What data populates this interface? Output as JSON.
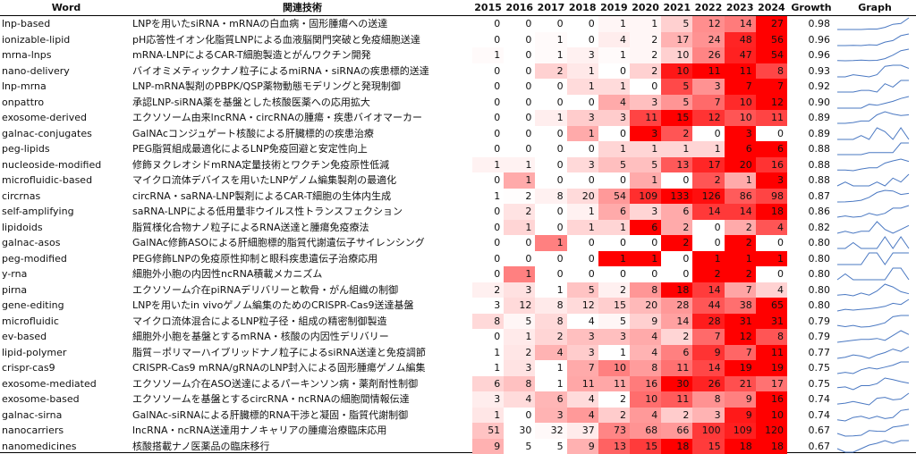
{
  "headers": {
    "word": "Word",
    "tech": "関連技術",
    "growth": "Growth",
    "graph": "Graph"
  },
  "years": [
    2015,
    2016,
    2017,
    2018,
    2019,
    2020,
    2021,
    2022,
    2023,
    2024
  ],
  "rows": [
    {
      "word": "lnp-based",
      "tech": "LNPを用いたsiRNA・mRNAの白血病・固形腫瘍への送達",
      "values": [
        0,
        0,
        0,
        0,
        1,
        1,
        5,
        12,
        14,
        27
      ],
      "growth": "0.98"
    },
    {
      "word": "ionizable-lipid",
      "tech": "pH応答性イオン化脂質LNPによる血液脳関門突破と免疫細胞送達",
      "values": [
        0,
        0,
        1,
        0,
        4,
        2,
        17,
        24,
        48,
        56
      ],
      "growth": "0.96"
    },
    {
      "word": "mrna-lnps",
      "tech": "mRNA-LNPによるCAR-T細胞製造とがんワクチン開発",
      "values": [
        1,
        0,
        1,
        3,
        1,
        2,
        10,
        26,
        47,
        54
      ],
      "growth": "0.96"
    },
    {
      "word": "nano-delivery",
      "tech": "バイオミメティックナノ粒子によるmiRNA・siRNAの疾患標的送達",
      "values": [
        0,
        0,
        2,
        1,
        0,
        2,
        10,
        11,
        11,
        8
      ],
      "growth": "0.93"
    },
    {
      "word": "lnp-mrna",
      "tech": "LNP-mRNA製剤のPBPK/QSP薬物動態モデリングと発現制御",
      "values": [
        0,
        0,
        0,
        1,
        1,
        0,
        5,
        3,
        7,
        7
      ],
      "growth": "0.92"
    },
    {
      "word": "onpattro",
      "tech": "承認LNP-siRNA薬を基盤とした核酸医薬への応用拡大",
      "values": [
        0,
        0,
        0,
        0,
        4,
        3,
        5,
        7,
        10,
        12
      ],
      "growth": "0.90"
    },
    {
      "word": "exosome-derived",
      "tech": "エクソソーム由来lncRNA・circRNAの腫瘍・疾患バイオマーカー",
      "values": [
        0,
        0,
        1,
        3,
        3,
        11,
        15,
        12,
        10,
        11
      ],
      "growth": "0.89"
    },
    {
      "word": "galnac-conjugates",
      "tech": "GalNAcコンジュゲート核酸による肝臓標的の疾患治療",
      "values": [
        0,
        0,
        0,
        1,
        0,
        3,
        2,
        0,
        3,
        0
      ],
      "growth": "0.89"
    },
    {
      "word": "peg-lipids",
      "tech": "PEG脂質組成最適化によるLNP免疫回避と安定性向上",
      "values": [
        0,
        0,
        0,
        0,
        1,
        1,
        1,
        1,
        6,
        6
      ],
      "growth": "0.88"
    },
    {
      "word": "nucleoside-modified",
      "tech": "修飾ヌクレオシドmRNA定量技術とワクチン免疫原性低減",
      "values": [
        1,
        1,
        0,
        3,
        5,
        5,
        13,
        17,
        20,
        16
      ],
      "growth": "0.88"
    },
    {
      "word": "microfluidic-based",
      "tech": "マイクロ流体デバイスを用いたLNPゲノム編集製剤の最適化",
      "values": [
        0,
        1,
        0,
        0,
        0,
        1,
        0,
        2,
        1,
        3
      ],
      "growth": "0.88"
    },
    {
      "word": "circrnas",
      "tech": "circRNA・saRNA-LNP製剤によるCAR-T細胞の生体内生成",
      "values": [
        1,
        2,
        8,
        20,
        54,
        109,
        133,
        126,
        86,
        98
      ],
      "growth": "0.87"
    },
    {
      "word": "self-amplifying",
      "tech": "saRNA-LNPによる低用量非ウイルス性トランスフェクション",
      "values": [
        0,
        2,
        0,
        1,
        6,
        3,
        6,
        14,
        14,
        18
      ],
      "growth": "0.86"
    },
    {
      "word": "lipidoids",
      "tech": "脂質様化合物ナノ粒子によるRNA送達と腫瘍免疫療法",
      "values": [
        0,
        1,
        0,
        1,
        1,
        6,
        2,
        0,
        2,
        4
      ],
      "growth": "0.82"
    },
    {
      "word": "galnac-asos",
      "tech": "GalNAc修飾ASOによる肝細胞標的脂質代謝遺伝子サイレンシング",
      "values": [
        0,
        0,
        1,
        0,
        0,
        0,
        2,
        0,
        2,
        0
      ],
      "growth": "0.80"
    },
    {
      "word": "peg-modified",
      "tech": "PEG修飾LNPの免疫原性抑制と眼科疾患遺伝子治療応用",
      "values": [
        0,
        0,
        0,
        0,
        1,
        1,
        0,
        1,
        1,
        1
      ],
      "growth": "0.80"
    },
    {
      "word": "y-rna",
      "tech": "細胞外小胞の内因性ncRNA積載メカニズム",
      "values": [
        0,
        1,
        0,
        0,
        0,
        0,
        0,
        2,
        2,
        0
      ],
      "growth": "0.80"
    },
    {
      "word": "pirna",
      "tech": "エクソソーム介在piRNAデリバリーと軟骨・がん組織の制御",
      "values": [
        2,
        3,
        1,
        5,
        2,
        8,
        18,
        14,
        7,
        4
      ],
      "growth": "0.80"
    },
    {
      "word": "gene-editing",
      "tech": "LNPを用いたin vivoゲノム編集のためのCRISPR-Cas9送達基盤",
      "values": [
        3,
        12,
        8,
        12,
        15,
        20,
        28,
        44,
        38,
        65
      ],
      "growth": "0.80"
    },
    {
      "word": "microfluidic",
      "tech": "マイクロ流体混合によるLNP粒子径・組成の精密制御製造",
      "values": [
        8,
        5,
        8,
        4,
        5,
        9,
        14,
        28,
        31,
        31
      ],
      "growth": "0.79"
    },
    {
      "word": "ev-based",
      "tech": "細胞外小胞を基盤とするmRNA・核酸の内因性デリバリー",
      "values": [
        0,
        1,
        2,
        3,
        3,
        4,
        2,
        7,
        12,
        8
      ],
      "growth": "0.79"
    },
    {
      "word": "lipid-polymer",
      "tech": "脂質－ポリマーハイブリッドナノ粒子によるsiRNA送達と免疫調節",
      "values": [
        1,
        2,
        4,
        3,
        1,
        4,
        6,
        9,
        7,
        11
      ],
      "growth": "0.77"
    },
    {
      "word": "crispr-cas9",
      "tech": "CRISPR-Cas9 mRNA/gRNAのLNP封入による固形腫瘍ゲノム編集",
      "values": [
        1,
        3,
        1,
        7,
        10,
        8,
        11,
        14,
        19,
        19
      ],
      "growth": "0.75"
    },
    {
      "word": "exosome-mediated",
      "tech": "エクソソーム介在ASO送達によるパーキンソン病・薬剤耐性制御",
      "values": [
        6,
        8,
        1,
        11,
        11,
        16,
        30,
        26,
        21,
        17
      ],
      "growth": "0.75"
    },
    {
      "word": "exosome-based",
      "tech": "エクソソームを基盤とするcircRNA・ncRNAの細胞間情報伝達",
      "values": [
        3,
        4,
        6,
        4,
        2,
        10,
        11,
        8,
        9,
        16
      ],
      "growth": "0.74"
    },
    {
      "word": "galnac-sirna",
      "tech": "GalNAc-siRNAによる肝臓標的RNA干渉と凝固・脂質代謝制御",
      "values": [
        1,
        0,
        3,
        4,
        2,
        4,
        2,
        3,
        9,
        10
      ],
      "growth": "0.74"
    },
    {
      "word": "nanocarriers",
      "tech": "lncRNA・ncRNA送達用ナノキャリアの腫瘍治療臨床応用",
      "values": [
        51,
        30,
        32,
        37,
        73,
        68,
        66,
        100,
        109,
        120
      ],
      "growth": "0.67"
    },
    {
      "word": "nanomedicines",
      "tech": "核酸搭載ナノ医薬品の臨床移行",
      "values": [
        9,
        5,
        5,
        9,
        13,
        15,
        18,
        15,
        18,
        18
      ],
      "growth": "0.67"
    }
  ]
}
